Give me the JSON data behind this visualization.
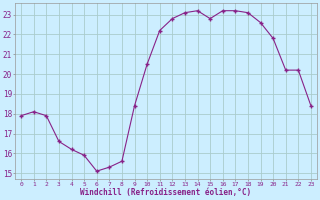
{
  "x": [
    0,
    1,
    2,
    3,
    4,
    5,
    6,
    7,
    8,
    9,
    10,
    11,
    12,
    13,
    14,
    15,
    16,
    17,
    18,
    19,
    20,
    21,
    22,
    23
  ],
  "y": [
    17.9,
    18.1,
    17.9,
    16.6,
    16.2,
    15.9,
    15.1,
    15.3,
    15.6,
    18.4,
    20.5,
    22.2,
    22.8,
    23.1,
    23.2,
    22.8,
    23.2,
    23.2,
    23.1,
    22.6,
    21.8,
    20.2,
    20.2,
    18.4
  ],
  "line_color": "#882288",
  "marker_color": "#882288",
  "bg_color": "#cceeff",
  "grid_color": "#aacccc",
  "axis_label_color": "#882288",
  "xlabel": "Windchill (Refroidissement éolien,°C)",
  "ylim_min": 14.7,
  "ylim_max": 23.6,
  "yticks": [
    15,
    16,
    17,
    18,
    19,
    20,
    21,
    22,
    23
  ],
  "xticks": [
    0,
    1,
    2,
    3,
    4,
    5,
    6,
    7,
    8,
    9,
    10,
    11,
    12,
    13,
    14,
    15,
    16,
    17,
    18,
    19,
    20,
    21,
    22,
    23
  ]
}
